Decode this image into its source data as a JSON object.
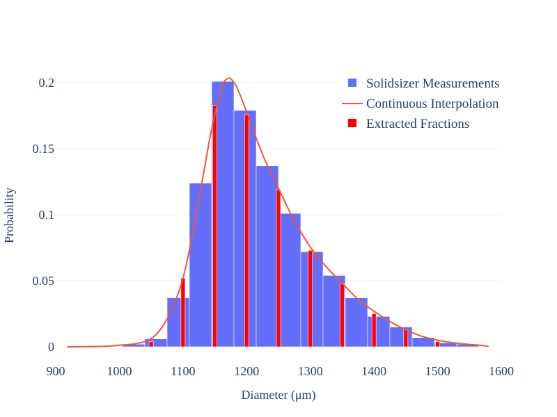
{
  "chart_data": {
    "type": "bar",
    "title": "",
    "xlabel": "Diameter (μm)",
    "ylabel": "Probability",
    "xlim": [
      900,
      1600
    ],
    "ylim": [
      0,
      0.21
    ],
    "x_ticks": [
      "900",
      "1000",
      "1100",
      "1200",
      "1300",
      "1400",
      "1500",
      "1600"
    ],
    "y_ticks": [
      "0",
      "0.05",
      "0.1",
      "0.15",
      "0.2"
    ],
    "grid": true,
    "legend_position": "top-right",
    "series": [
      {
        "name": "Solidsizer Measurements",
        "type": "histogram",
        "color": "#636efa",
        "bins": [
          {
            "start": 1005,
            "end": 1040,
            "value": 0.002
          },
          {
            "start": 1040,
            "end": 1075,
            "value": 0.006
          },
          {
            "start": 1075,
            "end": 1110,
            "value": 0.037
          },
          {
            "start": 1110,
            "end": 1145,
            "value": 0.124
          },
          {
            "start": 1145,
            "end": 1180,
            "value": 0.201
          },
          {
            "start": 1180,
            "end": 1215,
            "value": 0.179
          },
          {
            "start": 1215,
            "end": 1250,
            "value": 0.137
          },
          {
            "start": 1250,
            "end": 1285,
            "value": 0.101
          },
          {
            "start": 1285,
            "end": 1320,
            "value": 0.072
          },
          {
            "start": 1320,
            "end": 1355,
            "value": 0.054
          },
          {
            "start": 1355,
            "end": 1390,
            "value": 0.037
          },
          {
            "start": 1390,
            "end": 1425,
            "value": 0.023
          },
          {
            "start": 1425,
            "end": 1460,
            "value": 0.015
          },
          {
            "start": 1460,
            "end": 1495,
            "value": 0.007
          },
          {
            "start": 1495,
            "end": 1530,
            "value": 0.003
          },
          {
            "start": 1530,
            "end": 1565,
            "value": 0.002
          }
        ]
      },
      {
        "name": "Continuous Interpolation",
        "type": "line",
        "color": "#ef553b",
        "x": [
          918,
          960,
          985,
          1000,
          1020,
          1040,
          1055,
          1070,
          1085,
          1100,
          1115,
          1130,
          1145,
          1160,
          1165,
          1170,
          1175,
          1185,
          1200,
          1215,
          1230,
          1250,
          1270,
          1290,
          1310,
          1330,
          1350,
          1375,
          1400,
          1425,
          1450,
          1475,
          1500,
          1525,
          1550,
          1570,
          1580
        ],
        "y": [
          0.0,
          0.0002,
          0.0005,
          0.0012,
          0.002,
          0.004,
          0.008,
          0.017,
          0.031,
          0.052,
          0.085,
          0.125,
          0.165,
          0.195,
          0.201,
          0.203,
          0.203,
          0.196,
          0.178,
          0.158,
          0.14,
          0.12,
          0.1,
          0.083,
          0.069,
          0.058,
          0.048,
          0.036,
          0.027,
          0.019,
          0.013,
          0.008,
          0.005,
          0.003,
          0.0018,
          0.001,
          0.0003
        ]
      },
      {
        "name": "Extracted Fractions",
        "type": "bar",
        "color": "#ff0000",
        "x": [
          1050,
          1100,
          1150,
          1200,
          1250,
          1300,
          1350,
          1400,
          1450,
          1500
        ],
        "values": [
          0.004,
          0.052,
          0.183,
          0.176,
          0.119,
          0.073,
          0.048,
          0.025,
          0.013,
          0.004
        ]
      }
    ]
  }
}
